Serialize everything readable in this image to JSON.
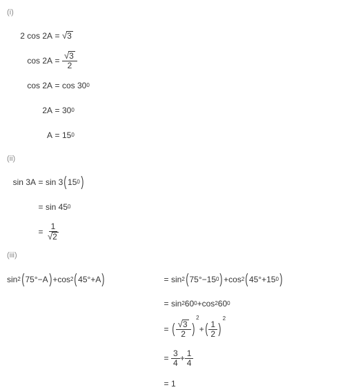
{
  "text_color": "#333333",
  "label_color": "#888888",
  "background": "#ffffff",
  "part1": {
    "label": "(i)",
    "lines": [
      {
        "lhs": "2 cos 2A",
        "rhs_type": "sqrt",
        "rhs": "3"
      },
      {
        "lhs": "cos 2A",
        "rhs_type": "frac_sqrt",
        "num": "3",
        "den": "2"
      },
      {
        "lhs": "cos 2A",
        "rhs_type": "plain",
        "rhs": "cos 30",
        "deg": "0"
      },
      {
        "lhs": "2A",
        "rhs_type": "plain",
        "rhs": "30",
        "deg": "0"
      },
      {
        "lhs": "A",
        "rhs_type": "plain",
        "rhs": "15",
        "deg": "0"
      }
    ],
    "lhs_width": 66
  },
  "part2": {
    "label": "(ii)",
    "lines": [
      {
        "lhs": "sin 3A",
        "rhs_type": "plain",
        "rhs_prefix": "sin 3",
        "paren": "15",
        "deg": "0"
      },
      {
        "lhs": "",
        "rhs_type": "plain",
        "rhs": "sin 45",
        "deg": "0"
      },
      {
        "lhs": "",
        "rhs_type": "frac_1_sqrt",
        "num": "1",
        "den": "2"
      }
    ],
    "lhs_width": 42
  },
  "part3": {
    "label": "(iii)",
    "first_lhs": {
      "t1": "sin",
      "e1": "2",
      "p1a": "75°",
      "p1op": " −  ",
      "p1b": "A",
      "plus": "   +   ",
      "t2": "cos",
      "e2": "2",
      "p2a": "45°",
      "p2op": " + ",
      "p2b": "A"
    },
    "lines": [
      {
        "rhs_type": "expr_paren2",
        "a": {
          "fn": "sin",
          "e": "2",
          "x": "75°",
          "op": " −  ",
          "y": "15",
          "deg": "0"
        },
        "plus": " + ",
        "b": {
          "fn": "cos",
          "e": "2",
          "x": "45°",
          "op": " + ",
          "y": "15",
          "deg": "0"
        }
      },
      {
        "rhs_type": "plain_sum",
        "a": {
          "fn": "sin",
          "e": "2",
          "arg": "60",
          "deg": "0"
        },
        "plus": " + ",
        "b": {
          "fn": "cos",
          "e": "2",
          "arg": "60",
          "deg": "0"
        }
      },
      {
        "rhs_type": "frac_paren_sum",
        "a": {
          "num_sqrt": "3",
          "den": "2",
          "exp": "2"
        },
        "plus": " + ",
        "b": {
          "num": "1",
          "den": "2",
          "exp": "2"
        }
      },
      {
        "rhs_type": "frac_sum",
        "a": {
          "num": "3",
          "den": "4"
        },
        "plus": " + ",
        "b": {
          "num": "1",
          "den": "4"
        }
      },
      {
        "rhs_type": "val",
        "val": "1"
      }
    ],
    "lhs_width": 224
  }
}
